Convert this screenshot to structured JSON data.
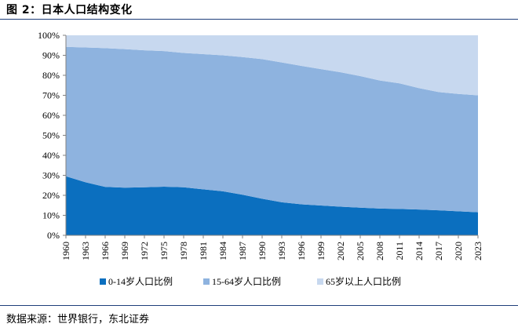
{
  "figure": {
    "title": "图 2：日本人口结构变化",
    "source": "数据来源：世界银行，东北证券"
  },
  "chart_data": {
    "type": "area",
    "stacked": true,
    "percent": true,
    "title": "",
    "xlabel": "",
    "ylabel": "",
    "ylim": [
      0,
      100
    ],
    "y_ticks": [
      "0%",
      "10%",
      "20%",
      "30%",
      "40%",
      "50%",
      "60%",
      "70%",
      "80%",
      "90%",
      "100%"
    ],
    "x_ticks": [
      "1960",
      "1963",
      "1966",
      "1969",
      "1972",
      "1975",
      "1978",
      "1981",
      "1984",
      "1987",
      "1990",
      "1993",
      "1996",
      "1999",
      "2002",
      "2005",
      "2008",
      "2011",
      "2014",
      "2017",
      "2020",
      "2023"
    ],
    "x": [
      1960,
      1963,
      1966,
      1969,
      1972,
      1975,
      1978,
      1981,
      1984,
      1987,
      1990,
      1993,
      1996,
      1999,
      2002,
      2005,
      2008,
      2011,
      2014,
      2017,
      2020,
      2023
    ],
    "legend_position": "bottom",
    "series": [
      {
        "name": "0-14岁人口比例",
        "color": "#0b6fbf",
        "values": [
          29.5,
          26.5,
          24.2,
          23.8,
          24.0,
          24.3,
          24.0,
          23.0,
          22.0,
          20.3,
          18.3,
          16.5,
          15.5,
          14.9,
          14.3,
          13.8,
          13.4,
          13.2,
          12.9,
          12.5,
          12.0,
          11.5
        ]
      },
      {
        "name": "15-64岁人口比例",
        "color": "#8eb3df",
        "values": [
          64.7,
          67.4,
          69.4,
          69.3,
          68.5,
          67.8,
          67.2,
          67.6,
          68.0,
          68.8,
          69.8,
          69.9,
          69.2,
          68.2,
          67.2,
          65.8,
          64.0,
          62.8,
          60.7,
          59.1,
          58.7,
          58.5
        ]
      },
      {
        "name": "65岁以上人口比例",
        "color": "#c7d8ef",
        "values": [
          5.8,
          6.1,
          6.4,
          6.9,
          7.5,
          7.9,
          8.8,
          9.4,
          10.0,
          10.9,
          11.9,
          13.6,
          15.3,
          16.9,
          18.5,
          20.4,
          22.6,
          24.0,
          26.4,
          28.4,
          29.3,
          30.0
        ]
      }
    ]
  }
}
